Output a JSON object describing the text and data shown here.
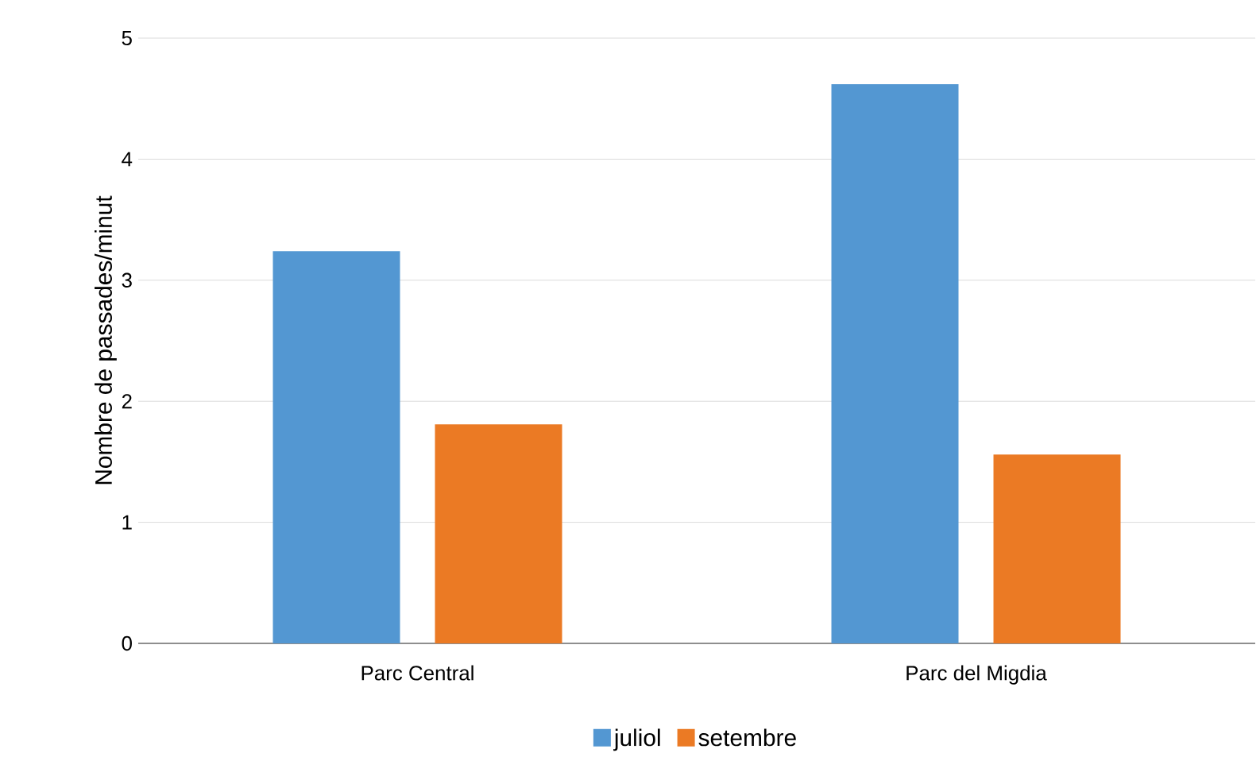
{
  "chart_data": {
    "type": "bar",
    "ylabel": "Nombre de passades/minut",
    "categories": [
      "Parc Central",
      "Parc del Migdia"
    ],
    "series": [
      {
        "name": "juliol",
        "color": "#5397d2",
        "values": [
          3.24,
          4.62
        ]
      },
      {
        "name": "setembre",
        "color": "#eb7a24",
        "values": [
          1.81,
          1.56
        ]
      }
    ],
    "ylim": [
      0,
      5
    ],
    "yticks": [
      0,
      1,
      2,
      3,
      4,
      5
    ],
    "grid": "y",
    "legend": "bottom"
  }
}
